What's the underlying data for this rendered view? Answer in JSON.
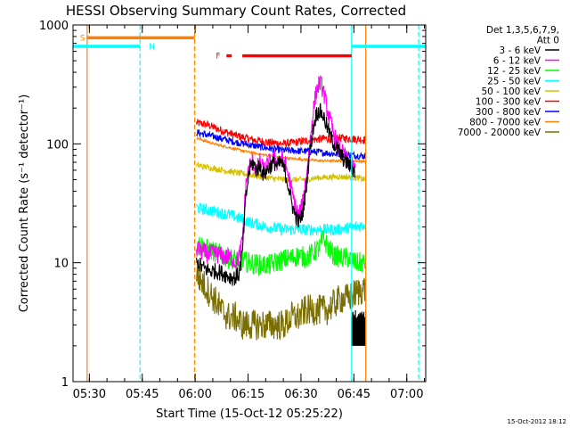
{
  "chart_data": {
    "type": "line",
    "title": "HESSI Observing Summary Count Rates, Corrected",
    "xlabel": "Start Time (15-Oct-12 05:25:22)",
    "ylabel": "Corrected Count Rate (s⁻¹ detector⁻¹)",
    "x_unit": "minutes after 05:25:22",
    "xlim": [
      0,
      100
    ],
    "ylim": [
      1,
      1000
    ],
    "y_scale": "log",
    "x_ticks": [
      {
        "value": 4.63,
        "label": "05:30"
      },
      {
        "value": 19.63,
        "label": "05:45"
      },
      {
        "value": 34.63,
        "label": "06:00"
      },
      {
        "value": 49.63,
        "label": "06:15"
      },
      {
        "value": 64.63,
        "label": "06:30"
      },
      {
        "value": 79.63,
        "label": "06:45"
      },
      {
        "value": 94.63,
        "label": "07:00"
      }
    ],
    "y_ticks": [
      {
        "value": 1,
        "label": "1"
      },
      {
        "value": 10,
        "label": "10"
      },
      {
        "value": 100,
        "label": "100"
      },
      {
        "value": 1000,
        "label": "1000"
      }
    ],
    "legend": {
      "placement": "right",
      "header": [
        "Det 1,3,5,6,7,9,",
        "Att 0"
      ],
      "entries": [
        {
          "label": "3 - 6 keV",
          "color": "#000000"
        },
        {
          "label": "6 - 12 keV",
          "color": "#ff00ff"
        },
        {
          "label": "12 - 25 keV",
          "color": "#00ff00"
        },
        {
          "label": "25 - 50 keV",
          "color": "#00ffff"
        },
        {
          "label": "50 - 100 keV",
          "color": "#d4c200"
        },
        {
          "label": "100 - 300 keV",
          "color": "#ff0000"
        },
        {
          "label": "300 - 800 keV",
          "color": "#0000ff"
        },
        {
          "label": "800 - 7000 keV",
          "color": "#ff8000"
        },
        {
          "label": "7000 - 20000 keV",
          "color": "#7a6e00"
        }
      ]
    },
    "series": [
      {
        "name": "100 - 300 keV",
        "color": "#ff0000",
        "noise": 0.035,
        "smooth": false,
        "points": [
          [
            35,
            150
          ],
          [
            38,
            145
          ],
          [
            42,
            130
          ],
          [
            46,
            118
          ],
          [
            50,
            110
          ],
          [
            55,
            103
          ],
          [
            60,
            100
          ],
          [
            65,
            105
          ],
          [
            70,
            110
          ],
          [
            75,
            112
          ],
          [
            80,
            110
          ],
          [
            83,
            108
          ]
        ]
      },
      {
        "name": "300 - 800 keV",
        "color": "#0000ff",
        "noise": 0.03,
        "smooth": false,
        "points": [
          [
            35,
            125
          ],
          [
            40,
            115
          ],
          [
            45,
            105
          ],
          [
            50,
            98
          ],
          [
            55,
            92
          ],
          [
            60,
            88
          ],
          [
            65,
            87
          ],
          [
            70,
            85
          ],
          [
            75,
            82
          ],
          [
            80,
            80
          ],
          [
            83,
            79
          ]
        ]
      },
      {
        "name": "800 - 7000 keV",
        "color": "#ff8000",
        "noise": 0.02,
        "smooth": true,
        "points": [
          [
            35,
            112
          ],
          [
            40,
            100
          ],
          [
            45,
            92
          ],
          [
            50,
            85
          ],
          [
            55,
            80
          ],
          [
            60,
            76
          ],
          [
            65,
            74
          ],
          [
            70,
            72
          ],
          [
            75,
            72
          ],
          [
            80,
            72
          ],
          [
            83,
            71
          ]
        ]
      },
      {
        "name": "50 - 100 keV",
        "color": "#d4c200",
        "noise": 0.025,
        "smooth": false,
        "points": [
          [
            35,
            66
          ],
          [
            40,
            62
          ],
          [
            45,
            58
          ],
          [
            50,
            55
          ],
          [
            55,
            52
          ],
          [
            60,
            50
          ],
          [
            65,
            50
          ],
          [
            70,
            52
          ],
          [
            75,
            53
          ],
          [
            80,
            52
          ],
          [
            83,
            50
          ]
        ]
      },
      {
        "name": "25 - 50 keV",
        "color": "#00ffff",
        "noise": 0.05,
        "smooth": false,
        "points": [
          [
            35,
            29
          ],
          [
            40,
            27
          ],
          [
            45,
            25
          ],
          [
            50,
            22
          ],
          [
            55,
            20
          ],
          [
            60,
            19
          ],
          [
            65,
            19
          ],
          [
            70,
            19
          ],
          [
            75,
            19
          ],
          [
            80,
            20
          ],
          [
            83,
            21
          ]
        ]
      },
      {
        "name": "12 - 25 keV",
        "color": "#00ff00",
        "noise": 0.09,
        "smooth": false,
        "points": [
          [
            35,
            15
          ],
          [
            38,
            13
          ],
          [
            41,
            12
          ],
          [
            44,
            11
          ],
          [
            47,
            10.5
          ],
          [
            50,
            10
          ],
          [
            53,
            9.6
          ],
          [
            56,
            9.6
          ],
          [
            59,
            10.5
          ],
          [
            62,
            11
          ],
          [
            64,
            11.5
          ],
          [
            66,
            11
          ],
          [
            68,
            12
          ],
          [
            70,
            13.5
          ],
          [
            71,
            16
          ],
          [
            72,
            14
          ],
          [
            74,
            11.5
          ],
          [
            76,
            11
          ],
          [
            78,
            11
          ],
          [
            80,
            10
          ],
          [
            83,
            10
          ]
        ]
      },
      {
        "name": "6 - 12 keV",
        "color": "#ff00ff",
        "noise": 0.08,
        "smooth": false,
        "points": [
          [
            35,
            13
          ],
          [
            38,
            12
          ],
          [
            40,
            12
          ],
          [
            42,
            11.5
          ],
          [
            44,
            11
          ],
          [
            45,
            11
          ],
          [
            46,
            10
          ],
          [
            47,
            11
          ],
          [
            48,
            15
          ],
          [
            49,
            45
          ],
          [
            50,
            65
          ],
          [
            51,
            70
          ],
          [
            52,
            60
          ],
          [
            53,
            70
          ],
          [
            54,
            60
          ],
          [
            55,
            65
          ],
          [
            56,
            70
          ],
          [
            57,
            75
          ],
          [
            58,
            70
          ],
          [
            59,
            75
          ],
          [
            60,
            70
          ],
          [
            61,
            55
          ],
          [
            62,
            40
          ],
          [
            63,
            30
          ],
          [
            64,
            25
          ],
          [
            65,
            30
          ],
          [
            66,
            50
          ],
          [
            67,
            90
          ],
          [
            68,
            180
          ],
          [
            69,
            280
          ],
          [
            70,
            330
          ],
          [
            71,
            280
          ],
          [
            72,
            200
          ],
          [
            73,
            150
          ],
          [
            74,
            120
          ],
          [
            75,
            95
          ],
          [
            76,
            85
          ],
          [
            77,
            80
          ],
          [
            78,
            70
          ],
          [
            79,
            65
          ],
          [
            80,
            60
          ]
        ]
      },
      {
        "name": "3 - 6 keV",
        "color": "#000000",
        "noise": 0.07,
        "smooth": false,
        "points": [
          [
            35,
            10
          ],
          [
            37,
            9
          ],
          [
            39,
            8.5
          ],
          [
            41,
            8.5
          ],
          [
            43,
            8
          ],
          [
            45,
            7.5
          ],
          [
            46,
            7.5
          ],
          [
            47,
            8
          ],
          [
            48,
            12
          ],
          [
            49,
            35
          ],
          [
            50,
            60
          ],
          [
            51,
            70
          ],
          [
            52,
            60
          ],
          [
            53,
            65
          ],
          [
            54,
            55
          ],
          [
            55,
            60
          ],
          [
            56,
            65
          ],
          [
            57,
            70
          ],
          [
            58,
            65
          ],
          [
            59,
            70
          ],
          [
            60,
            60
          ],
          [
            61,
            45
          ],
          [
            62,
            32
          ],
          [
            63,
            25
          ],
          [
            64,
            22
          ],
          [
            65,
            25
          ],
          [
            66,
            40
          ],
          [
            67,
            80
          ],
          [
            68,
            130
          ],
          [
            69,
            180
          ],
          [
            70,
            190
          ],
          [
            71,
            170
          ],
          [
            72,
            140
          ],
          [
            73,
            115
          ],
          [
            74,
            100
          ],
          [
            75,
            90
          ],
          [
            76,
            80
          ],
          [
            77,
            72
          ],
          [
            78,
            68
          ],
          [
            79,
            62
          ],
          [
            80,
            58
          ]
        ]
      },
      {
        "name": "7000 - 20000 keV",
        "color": "#7a6e00",
        "noise": 0.13,
        "smooth": false,
        "points": [
          [
            35,
            8
          ],
          [
            38,
            6
          ],
          [
            40,
            5
          ],
          [
            42,
            4
          ],
          [
            44,
            3.5
          ],
          [
            46,
            3.5
          ],
          [
            48,
            3
          ],
          [
            50,
            3
          ],
          [
            52,
            3
          ],
          [
            54,
            3
          ],
          [
            56,
            3
          ],
          [
            58,
            3
          ],
          [
            60,
            3
          ],
          [
            62,
            3.5
          ],
          [
            64,
            3.5
          ],
          [
            66,
            4
          ],
          [
            68,
            4
          ],
          [
            70,
            4
          ],
          [
            72,
            4
          ],
          [
            74,
            4.5
          ],
          [
            76,
            5
          ],
          [
            78,
            5
          ],
          [
            80,
            5.5
          ],
          [
            82,
            6
          ],
          [
            83,
            6
          ]
        ]
      }
    ],
    "tail_block": {
      "x": [
        79,
        83
      ],
      "low": 2,
      "high": 4,
      "series": "3 - 6 keV"
    },
    "flags": [
      {
        "name": "S",
        "label": "S",
        "color": "#ff8000",
        "y": 780,
        "x0": 4,
        "x1": 34.5,
        "label_x": 2
      },
      {
        "name": "N",
        "label": "N",
        "color": "#00ffff",
        "y": 660,
        "x0": 0,
        "x1": 19,
        "label_x": 21.5
      },
      {
        "name": "N-after",
        "label": "",
        "color": "#00ffff",
        "y": 660,
        "x0": 79,
        "x1": 100,
        "label_x": 79
      },
      {
        "name": "F-short",
        "label": "F",
        "color": "#ff0000",
        "y": 550,
        "x0": 43.5,
        "x1": 45,
        "label_x": 40.5
      },
      {
        "name": "F-long",
        "label": "",
        "color": "#ff0000",
        "y": 550,
        "x0": 48,
        "x1": 79,
        "label_x": 48
      }
    ],
    "vlines": [
      {
        "x": 4,
        "color": "#ff8000",
        "dash": false
      },
      {
        "x": 19,
        "color": "#00ffff",
        "dash": true
      },
      {
        "x": 34.5,
        "color": "#ff8000",
        "dash": true
      },
      {
        "x": 79,
        "color": "#00ffff",
        "dash": false
      },
      {
        "x": 83,
        "color": "#ff8000",
        "dash": false
      },
      {
        "x": 98,
        "color": "#00ffff",
        "dash": true
      }
    ],
    "timestamp": "15-Oct-2012 18:12"
  }
}
